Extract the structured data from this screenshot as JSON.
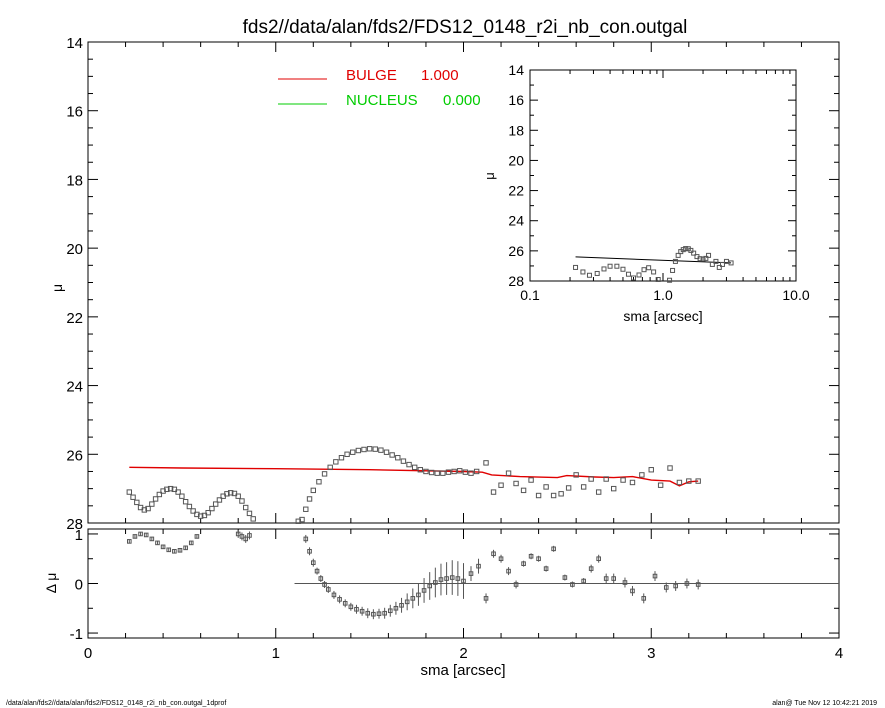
{
  "title": "fds2//data/alan/fds2/FDS12_0148_r2i_nb_con.outgal",
  "footer_left": "/data/alan/fds2//data/alan/fds2/FDS12_0148_r2i_nb_con.outgal_1dprof",
  "footer_right": "alan@  Tue Nov 12 10:42:21 2019",
  "colors": {
    "bulge": "#e00000",
    "nucleus": "#00cc00",
    "data": "#555555"
  },
  "legend": [
    {
      "name": "BULGE",
      "value": "1.000",
      "color": "#e00000"
    },
    {
      "name": "NUCLEUS",
      "value": "0.000",
      "color": "#00cc00"
    }
  ],
  "chart_data": [
    {
      "type": "scatter",
      "panel": "main",
      "xlabel": "sma [arcsec]",
      "ylabel": "μ",
      "xlim": [
        0,
        4
      ],
      "ylim": [
        28,
        14
      ],
      "xticks": [
        "0",
        "1",
        "2",
        "3",
        "4"
      ],
      "yticks": [
        "14",
        "16",
        "18",
        "20",
        "22",
        "24",
        "26",
        "28"
      ],
      "series": [
        {
          "name": "BULGE",
          "kind": "line",
          "x": [
            0.22,
            0.5,
            1.0,
            1.5,
            2.0,
            2.1,
            2.15,
            2.3,
            2.5,
            2.55,
            2.7,
            2.8,
            2.9,
            3.0,
            3.1,
            3.15,
            3.2,
            3.25
          ],
          "y": [
            26.38,
            26.4,
            26.42,
            26.45,
            26.5,
            26.52,
            26.6,
            26.65,
            26.68,
            26.62,
            26.66,
            26.68,
            26.65,
            26.75,
            26.78,
            26.92,
            26.8,
            26.78
          ]
        },
        {
          "name": "",
          "kind": "points",
          "x": [
            0.22,
            0.24,
            0.26,
            0.28,
            0.3,
            0.32,
            0.34,
            0.36,
            0.38,
            0.4,
            0.42,
            0.44,
            0.46,
            0.48,
            0.5,
            0.52,
            0.54,
            0.56,
            0.58,
            0.6,
            0.62,
            0.64,
            0.66,
            0.68,
            0.7,
            0.72,
            0.74,
            0.76,
            0.78,
            0.8,
            0.82,
            0.84,
            0.86,
            0.88,
            0.94,
            1.12,
            1.14,
            1.16,
            1.18,
            1.2,
            1.23,
            1.26,
            1.29,
            1.32,
            1.35,
            1.38,
            1.41,
            1.44,
            1.47,
            1.5,
            1.53,
            1.56,
            1.59,
            1.62,
            1.65,
            1.68,
            1.71,
            1.74,
            1.77,
            1.8,
            1.83,
            1.86,
            1.89,
            1.92,
            1.95,
            1.98,
            2.01,
            2.04,
            2.07,
            2.12,
            2.16,
            2.2,
            2.24,
            2.28,
            2.32,
            2.36,
            2.4,
            2.44,
            2.48,
            2.52,
            2.56,
            2.6,
            2.64,
            2.68,
            2.72,
            2.76,
            2.8,
            2.85,
            2.9,
            2.95,
            3.0,
            3.05,
            3.1,
            3.15,
            3.2,
            3.25
          ],
          "y": [
            27.1,
            27.25,
            27.4,
            27.55,
            27.62,
            27.58,
            27.45,
            27.3,
            27.17,
            27.07,
            27.02,
            27.0,
            27.02,
            27.1,
            27.22,
            27.38,
            27.52,
            27.65,
            27.75,
            27.8,
            27.78,
            27.7,
            27.58,
            27.45,
            27.33,
            27.22,
            27.15,
            27.12,
            27.14,
            27.22,
            27.36,
            27.55,
            27.72,
            27.88,
            28.1,
            27.95,
            27.9,
            27.6,
            27.3,
            27.05,
            26.8,
            26.57,
            26.38,
            26.22,
            26.1,
            26.0,
            25.94,
            25.89,
            25.86,
            25.84,
            25.85,
            25.88,
            25.94,
            26.02,
            26.1,
            26.2,
            26.3,
            26.38,
            26.45,
            26.5,
            26.53,
            26.55,
            26.55,
            26.52,
            26.5,
            26.48,
            26.52,
            26.55,
            26.5,
            26.25,
            27.1,
            26.9,
            26.55,
            26.85,
            27.05,
            26.75,
            27.2,
            26.95,
            27.2,
            27.15,
            26.98,
            26.6,
            26.95,
            26.72,
            27.1,
            26.72,
            27.0,
            26.75,
            26.82,
            26.6,
            26.45,
            26.9,
            26.4,
            26.82,
            26.78,
            26.78
          ]
        }
      ]
    },
    {
      "type": "scatter",
      "panel": "residual",
      "xlabel": "sma [arcsec]",
      "ylabel": "Δ μ",
      "xlim": [
        0,
        4
      ],
      "ylim": [
        -1.1,
        1.1
      ],
      "xticks": [
        "0",
        "1",
        "2",
        "3",
        "4"
      ],
      "yticks": [
        "1",
        "0",
        "-1"
      ],
      "reference_line": {
        "y": 0,
        "x_from": 1.1,
        "x_to": 4.0
      },
      "series": [
        {
          "name": "",
          "x": [
            0.22,
            0.25,
            0.28,
            0.31,
            0.34,
            0.37,
            0.4,
            0.43,
            0.46,
            0.49,
            0.52,
            0.55,
            0.58,
            0.8,
            0.82,
            0.84,
            0.86,
            1.16,
            1.18,
            1.2,
            1.22,
            1.24,
            1.26,
            1.28,
            1.31,
            1.34,
            1.37,
            1.4,
            1.43,
            1.46,
            1.49,
            1.52,
            1.55,
            1.58,
            1.61,
            1.64,
            1.67,
            1.7,
            1.73,
            1.76,
            1.79,
            1.82,
            1.85,
            1.88,
            1.91,
            1.94,
            1.97,
            2.0,
            2.04,
            2.08,
            2.12,
            2.16,
            2.2,
            2.24,
            2.28,
            2.32,
            2.36,
            2.4,
            2.44,
            2.48,
            2.54,
            2.58,
            2.64,
            2.68,
            2.72,
            2.76,
            2.8,
            2.86,
            2.9,
            2.96,
            3.02,
            3.08,
            3.13,
            3.19,
            3.25
          ],
          "y": [
            0.85,
            0.95,
            1.0,
            0.98,
            0.9,
            0.82,
            0.74,
            0.68,
            0.65,
            0.67,
            0.72,
            0.82,
            0.95,
            1.0,
            0.95,
            0.9,
            0.97,
            0.9,
            0.65,
            0.42,
            0.25,
            0.1,
            -0.02,
            -0.12,
            -0.23,
            -0.32,
            -0.4,
            -0.47,
            -0.52,
            -0.56,
            -0.6,
            -0.62,
            -0.61,
            -0.6,
            -0.55,
            -0.5,
            -0.44,
            -0.37,
            -0.3,
            -0.23,
            -0.14,
            -0.05,
            0.02,
            0.08,
            0.1,
            0.12,
            0.1,
            0.05,
            0.2,
            0.35,
            -0.3,
            0.6,
            0.5,
            0.25,
            -0.02,
            0.4,
            0.55,
            0.5,
            0.3,
            0.7,
            0.12,
            -0.02,
            0.05,
            0.3,
            0.5,
            0.1,
            0.1,
            0.02,
            -0.15,
            -0.3,
            0.15,
            -0.08,
            -0.05,
            0.0,
            -0.02
          ],
          "err": [
            0.04,
            0.04,
            0.04,
            0.04,
            0.04,
            0.04,
            0.04,
            0.04,
            0.04,
            0.04,
            0.04,
            0.04,
            0.04,
            0.08,
            0.08,
            0.08,
            0.08,
            0.08,
            0.08,
            0.08,
            0.07,
            0.07,
            0.07,
            0.07,
            0.08,
            0.08,
            0.08,
            0.08,
            0.09,
            0.09,
            0.1,
            0.1,
            0.1,
            0.11,
            0.12,
            0.13,
            0.15,
            0.17,
            0.2,
            0.22,
            0.25,
            0.28,
            0.3,
            0.32,
            0.33,
            0.35,
            0.35,
            0.36,
            0.15,
            0.15,
            0.1,
            0.08,
            0.08,
            0.08,
            0.08,
            0.06,
            0.06,
            0.06,
            0.06,
            0.06,
            0.06,
            0.06,
            0.06,
            0.08,
            0.08,
            0.1,
            0.1,
            0.1,
            0.1,
            0.1,
            0.1,
            0.1,
            0.1,
            0.1,
            0.1
          ]
        }
      ]
    },
    {
      "type": "scatter",
      "panel": "inset",
      "xlabel": "sma [arcsec]",
      "ylabel": "μ",
      "xscale": "log",
      "xlim": [
        0.1,
        10.0
      ],
      "ylim": [
        28,
        14
      ],
      "xticks": [
        "0.1",
        "1.0",
        "10.0"
      ],
      "yticks": [
        "14",
        "16",
        "18",
        "20",
        "22",
        "24",
        "26",
        "28"
      ],
      "model_line": {
        "x": [
          0.22,
          3.25
        ],
        "y": [
          26.4,
          26.8
        ]
      },
      "series": [
        {
          "name": "",
          "x": [
            0.22,
            0.25,
            0.28,
            0.32,
            0.36,
            0.4,
            0.45,
            0.5,
            0.55,
            0.6,
            0.66,
            0.72,
            0.78,
            0.85,
            0.92,
            1.12,
            1.18,
            1.24,
            1.3,
            1.36,
            1.42,
            1.48,
            1.55,
            1.62,
            1.7,
            1.8,
            1.9,
            2.0,
            2.1,
            2.2,
            2.35,
            2.5,
            2.65,
            2.8,
            3.0,
            3.25
          ],
          "y": [
            27.1,
            27.4,
            27.62,
            27.5,
            27.2,
            27.02,
            27.02,
            27.22,
            27.55,
            27.8,
            27.6,
            27.25,
            27.12,
            27.4,
            27.9,
            27.95,
            27.3,
            26.7,
            26.3,
            26.05,
            25.92,
            25.85,
            25.86,
            25.97,
            26.15,
            26.38,
            26.52,
            26.55,
            26.5,
            26.3,
            26.9,
            26.7,
            27.1,
            26.9,
            26.7,
            26.8
          ]
        }
      ]
    }
  ]
}
